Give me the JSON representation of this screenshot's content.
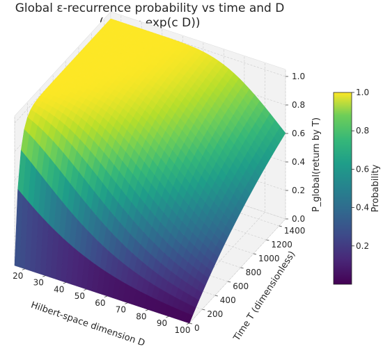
{
  "chart_data": {
    "type": "surface",
    "title_line1": "Global ε-recurrence probability vs time and D",
    "title_line2": "(τ(D) ∝ exp(c D))",
    "xlabel": "Hilbert-space dimension D",
    "ylabel": "Time T (dimensionless)",
    "zlabel": "P_global(return by T)",
    "colorbar_label": "Probability",
    "colormap": "viridis",
    "xlim": [
      15,
      100
    ],
    "ylim": [
      0,
      1500
    ],
    "zlim": [
      0,
      1
    ],
    "x_ticks": [
      20,
      30,
      40,
      50,
      60,
      70,
      80,
      90,
      100
    ],
    "y_ticks": [
      0,
      200,
      400,
      600,
      800,
      1000,
      1200,
      1400
    ],
    "z_ticks": [
      "0.0",
      "0.2",
      "0.4",
      "0.6",
      "0.8",
      "1.0"
    ],
    "colorbar_ticks": [
      "0.2",
      "0.4",
      "0.6",
      "0.8",
      "1.0"
    ],
    "colorbar_range": [
      0,
      1
    ],
    "grid": true,
    "surface_samples": [
      {
        "D": 15,
        "T": 0,
        "P": 0.0
      },
      {
        "D": 15,
        "T": 100,
        "P": 0.73
      },
      {
        "D": 15,
        "T": 400,
        "P": 1.0
      },
      {
        "D": 15,
        "T": 1500,
        "P": 1.0
      },
      {
        "D": 40,
        "T": 0,
        "P": 0.0
      },
      {
        "D": 40,
        "T": 300,
        "P": 0.8
      },
      {
        "D": 40,
        "T": 1500,
        "P": 1.0
      },
      {
        "D": 70,
        "T": 0,
        "P": 0.0
      },
      {
        "D": 70,
        "T": 750,
        "P": 0.6
      },
      {
        "D": 70,
        "T": 1500,
        "P": 0.85
      },
      {
        "D": 100,
        "T": 0,
        "P": 0.0
      },
      {
        "D": 100,
        "T": 750,
        "P": 0.35
      },
      {
        "D": 100,
        "T": 1500,
        "P": 0.6
      }
    ]
  }
}
